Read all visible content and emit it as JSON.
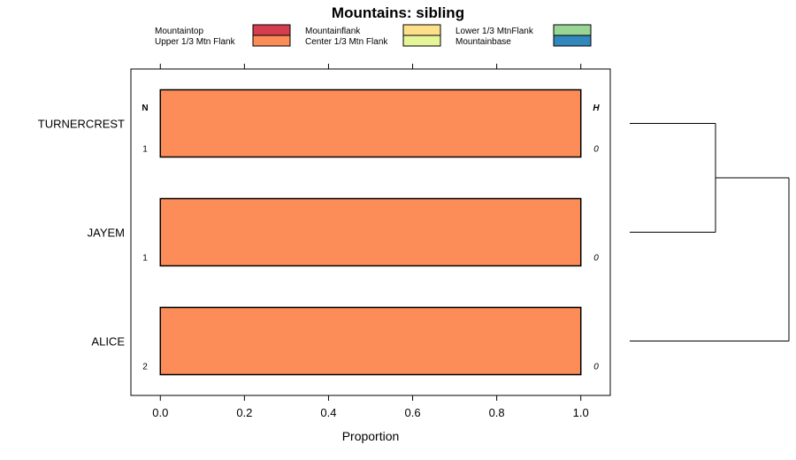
{
  "chart_data": {
    "type": "bar",
    "orientation": "horizontal",
    "stacked": true,
    "title": "Mountains: sibling",
    "xlabel": "Proportion",
    "ylabel": "",
    "xlim": [
      -0.07,
      1.07
    ],
    "xticks": [
      "0.0",
      "0.2",
      "0.4",
      "0.6",
      "0.8",
      "1.0"
    ],
    "categories": [
      "TURNERCREST",
      "JAYEM",
      "ALICE"
    ],
    "n_header": "N",
    "h_header": "H",
    "n_values": [
      "1",
      "1",
      "2"
    ],
    "h_values": [
      "0",
      "0",
      "0"
    ],
    "legend": {
      "placement": "top",
      "entries": [
        {
          "name": "Mountaintop",
          "color": "#d53e4f"
        },
        {
          "name": "Upper 1/3 Mtn Flank",
          "color": "#fc8d59"
        },
        {
          "name": "Mountainflank",
          "color": "#fee08b"
        },
        {
          "name": "Center 1/3 Mtn Flank",
          "color": "#e6f598"
        },
        {
          "name": "Lower 1/3 MtnFlank",
          "color": "#99d594"
        },
        {
          "name": "Mountainbase",
          "color": "#3288bd"
        }
      ]
    },
    "series": [
      {
        "name": "Mountaintop",
        "values": [
          0,
          0,
          0
        ]
      },
      {
        "name": "Upper 1/3 Mtn Flank",
        "values": [
          1,
          1,
          1
        ]
      },
      {
        "name": "Mountainflank",
        "values": [
          0,
          0,
          0
        ]
      },
      {
        "name": "Center 1/3 Mtn Flank",
        "values": [
          0,
          0,
          0
        ]
      },
      {
        "name": "Lower 1/3 MtnFlank",
        "values": [
          0,
          0,
          0
        ]
      },
      {
        "name": "Mountainbase",
        "values": [
          0,
          0,
          0
        ]
      }
    ],
    "dendrogram": {
      "merges": [
        {
          "left": "TURNERCREST",
          "right": "JAYEM"
        },
        {
          "left": "cluster-1",
          "right": "ALICE"
        }
      ]
    }
  }
}
